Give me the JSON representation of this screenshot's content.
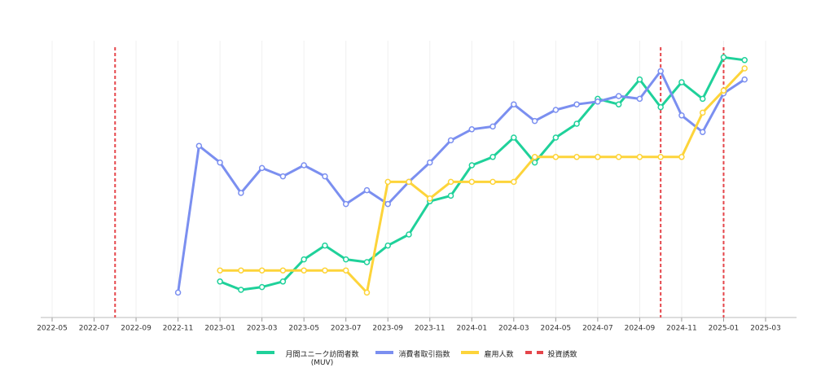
{
  "chart_data": {
    "type": "line",
    "x": [
      "2022-11",
      "2022-12",
      "2023-01",
      "2023-02",
      "2023-03",
      "2023-04",
      "2023-05",
      "2023-06",
      "2023-07",
      "2023-08",
      "2023-09",
      "2023-10",
      "2023-11",
      "2023-12",
      "2024-01",
      "2024-02",
      "2024-03",
      "2024-04",
      "2024-05",
      "2024-06",
      "2024-07",
      "2024-08",
      "2024-09",
      "2024-10",
      "2024-11",
      "2024-12",
      "2025-01",
      "2025-02"
    ],
    "series": [
      {
        "name": "月間ユニーク訪問者数 (MUV)",
        "color": "#1fd19a",
        "values": [
          null,
          null,
          13,
          10,
          11,
          13,
          21,
          26,
          21,
          20,
          26,
          30,
          42,
          44,
          55,
          58,
          65,
          56,
          65,
          70,
          79,
          77,
          86,
          76,
          85,
          79,
          94,
          93
        ]
      },
      {
        "name": "消費者取引指数",
        "color": "#7b8ff0",
        "values": [
          9,
          62,
          56,
          45,
          54,
          51,
          55,
          51,
          41,
          46,
          41,
          49,
          56,
          64,
          68,
          69,
          77,
          71,
          75,
          77,
          78,
          80,
          79,
          89,
          73,
          67,
          81,
          86
        ]
      },
      {
        "name": "雇用人数",
        "color": "#fdd43a",
        "values": [
          null,
          null,
          17,
          17,
          17,
          17,
          17,
          17,
          17,
          9,
          49,
          49,
          43,
          49,
          49,
          49,
          49,
          58,
          58,
          58,
          58,
          58,
          58,
          58,
          58,
          74,
          82,
          90
        ]
      }
    ],
    "events": {
      "name": "投資誘致",
      "color": "#e5454a",
      "x": [
        "2022-08",
        "2024-10",
        "2025-01"
      ]
    },
    "xticks": [
      "2022-05",
      "2022-07",
      "2022-09",
      "2022-11",
      "2023-01",
      "2023-03",
      "2023-05",
      "2023-07",
      "2023-09",
      "2023-11",
      "2024-01",
      "2024-03",
      "2024-05",
      "2024-07",
      "2024-09",
      "2024-11",
      "2025-01",
      "2025-03"
    ],
    "ylim": [
      0,
      100
    ],
    "grid": true
  }
}
